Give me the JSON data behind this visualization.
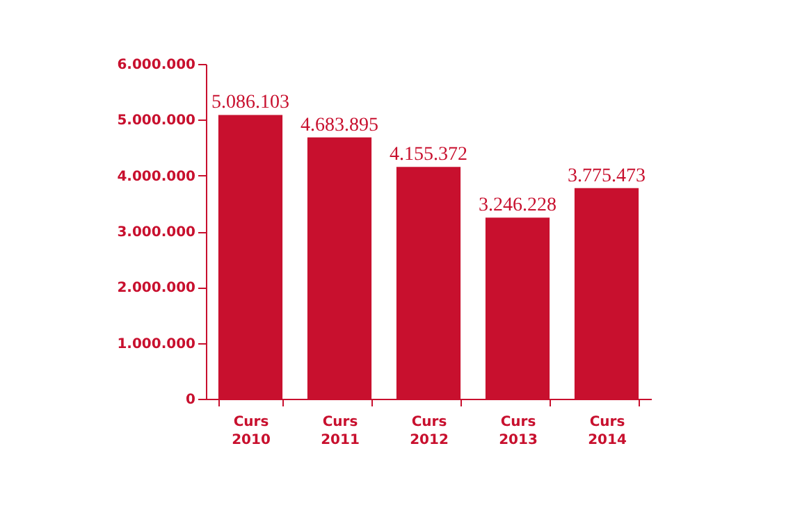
{
  "chart_data": {
    "type": "bar",
    "categories": [
      "Curs 2010",
      "Curs 2011",
      "Curs 2012",
      "Curs 2013",
      "Curs 2014"
    ],
    "values": [
      5086103,
      4683895,
      4155372,
      3246228,
      3775473
    ],
    "value_labels": [
      "5.086.103",
      "4.683.895",
      "4.155.372",
      "3.246.228",
      "3.775.473"
    ],
    "color": "#c8102e",
    "ylim": [
      0,
      6000000
    ],
    "yticks": [
      0,
      {
        "value": 1000000,
        "label": "1.000.000"
      },
      {
        "value": 2000000,
        "label": "2.000.000"
      },
      {
        "value": 3000000,
        "label": "3.000.000"
      },
      {
        "value": 4000000,
        "label": "4.000.000"
      },
      {
        "value": 5000000,
        "label": "5.000.000"
      },
      {
        "value": 6000000,
        "label": "6.000.000"
      }
    ],
    "grid": false
  }
}
